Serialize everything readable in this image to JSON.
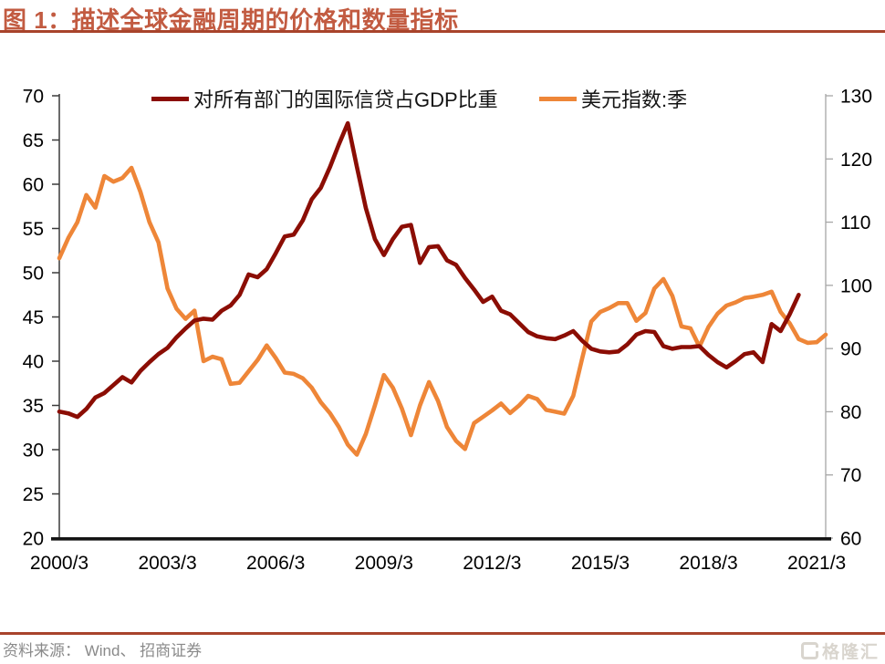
{
  "header": {
    "title": "图 1：描述全球金融周期的价格和数量指标"
  },
  "chart_data": {
    "type": "line",
    "title": "图 1：描述全球金融周期的价格和数量指标",
    "x_frequency": "quarterly",
    "x_start": "2000/3",
    "x_tick_labels": [
      "2000/3",
      "2003/3",
      "2006/3",
      "2009/3",
      "2012/3",
      "2015/3",
      "2018/3",
      "2021/3"
    ],
    "left_axis": {
      "min": 20,
      "max": 70,
      "ticks": [
        70,
        65,
        60,
        55,
        50,
        45,
        40,
        35,
        30,
        25,
        20
      ]
    },
    "right_axis": {
      "min": 60,
      "max": 130,
      "ticks": [
        130,
        120,
        110,
        100,
        90,
        80,
        70,
        60
      ]
    },
    "grid": false,
    "legend_position": "top",
    "series": [
      {
        "name": "对所有部门的国际信贷占GDP比重",
        "axis": "left",
        "color": "#8B0D04",
        "values": [
          34.3,
          34.1,
          33.7,
          34.6,
          35.9,
          36.4,
          37.3,
          38.2,
          37.6,
          38.9,
          39.9,
          40.8,
          41.5,
          42.7,
          43.7,
          44.6,
          44.8,
          44.7,
          45.7,
          46.3,
          47.5,
          49.8,
          49.5,
          50.4,
          52.2,
          54.1,
          54.3,
          55.9,
          58.3,
          59.6,
          61.9,
          64.5,
          66.9,
          62.0,
          57.3,
          53.8,
          52.0,
          53.8,
          55.2,
          55.4,
          51.1,
          52.9,
          53.0,
          51.4,
          50.9,
          49.4,
          48.1,
          46.7,
          47.3,
          45.7,
          45.3,
          44.3,
          43.3,
          42.8,
          42.6,
          42.5,
          42.9,
          43.4,
          42.3,
          41.4,
          41.1,
          41.0,
          41.1,
          41.9,
          43.0,
          43.4,
          43.3,
          41.7,
          41.4,
          41.6,
          41.6,
          41.7,
          40.7,
          39.9,
          39.3,
          40.0,
          40.8,
          41.0,
          39.9,
          44.2,
          43.4,
          45.3,
          47.5
        ]
      },
      {
        "name": "美元指数:季",
        "axis": "right",
        "color": "#EE8638",
        "values": [
          104.3,
          107.5,
          110.0,
          114.3,
          112.3,
          117.3,
          116.4,
          117.0,
          118.6,
          114.8,
          110.0,
          106.8,
          99.5,
          96.3,
          94.7,
          96.0,
          88.0,
          88.7,
          88.3,
          84.4,
          84.6,
          86.4,
          88.2,
          90.5,
          88.5,
          86.2,
          86.0,
          85.3,
          83.8,
          81.5,
          79.8,
          77.6,
          74.8,
          73.2,
          76.5,
          81.0,
          85.8,
          83.8,
          80.5,
          76.3,
          81.0,
          84.7,
          81.7,
          77.6,
          75.4,
          74.1,
          78.2,
          79.2,
          80.2,
          81.3,
          79.8,
          81.0,
          82.5,
          82.0,
          80.3,
          80.0,
          79.7,
          82.5,
          88.5,
          94.3,
          95.8,
          96.4,
          97.2,
          97.2,
          94.4,
          95.6,
          99.5,
          101.0,
          98.3,
          93.5,
          93.2,
          90.3,
          93.4,
          95.5,
          96.8,
          97.3,
          98.0,
          98.2,
          98.5,
          99.0,
          95.8,
          94.0,
          91.5,
          90.9,
          91.0,
          92.2
        ]
      }
    ]
  },
  "footer": {
    "source": "资料来源： Wind、 招商证券",
    "logo_text": "格隆汇"
  },
  "colors": {
    "title": "#C25B41",
    "divider": "#A8432B",
    "legend_text": "#141414",
    "axis_text": "#000000",
    "axis_left": "#3A3A3A",
    "axis_right": "#A6A6A6",
    "axis_bottom": "#141414",
    "source_text": "#8A8A8A",
    "logo": "#D9D5CE",
    "credit_line": "#8B0D04",
    "usd_index_line": "#EE8638"
  }
}
